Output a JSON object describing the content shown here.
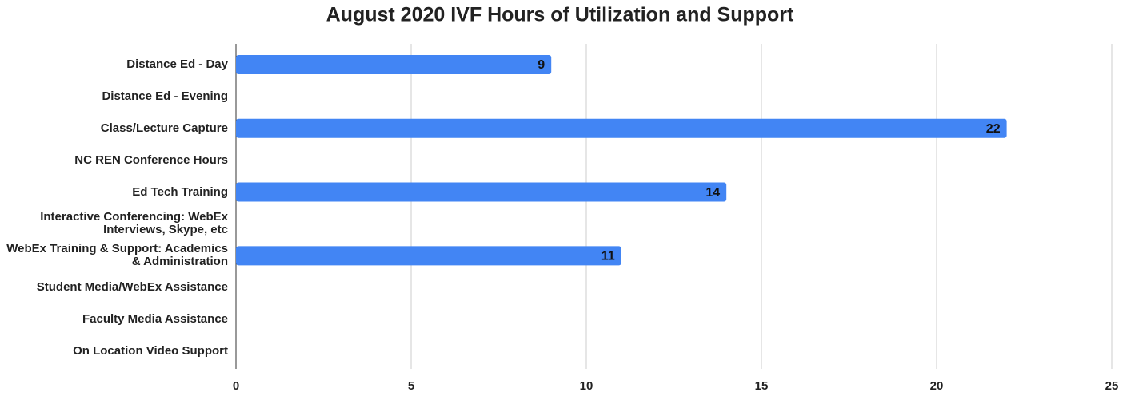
{
  "chart_data": {
    "type": "bar",
    "orientation": "horizontal",
    "title": "August 2020 IVF Hours of Utilization and Support",
    "categories": [
      "Distance Ed - Day",
      "Distance Ed - Evening",
      "Class/Lecture Capture",
      "NC REN Conference Hours",
      "Ed Tech Training",
      "Interactive Conferencing: WebEx Interviews, Skype, etc",
      "WebEx Training & Support: Academics & Administration",
      "Student Media/WebEx Assistance",
      "Faculty Media Assistance",
      "On Location Video Support"
    ],
    "values": [
      9,
      null,
      22,
      null,
      14,
      null,
      11,
      null,
      null,
      null
    ],
    "color": "#4285f4",
    "xlim": [
      0,
      25
    ],
    "xticks": [
      0,
      5,
      10,
      15,
      20,
      25
    ],
    "grid": true
  }
}
